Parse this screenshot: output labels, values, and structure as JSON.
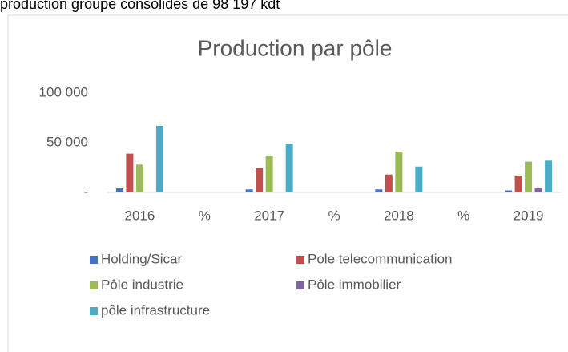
{
  "page_text": "production groupe consolidés de 98 197 kdt",
  "chart_data": {
    "type": "bar",
    "title": "Production par pôle",
    "categories": [
      "2016",
      "%",
      "2017",
      "%",
      "2018",
      "%",
      "2019"
    ],
    "series": [
      {
        "name": "Holding/Sicar",
        "color": "#4472c4",
        "values": [
          4000,
          0,
          3000,
          0,
          3000,
          0,
          2000
        ]
      },
      {
        "name": "Pole telecommunication",
        "color": "#c0504d",
        "values": [
          39000,
          0,
          25000,
          0,
          18000,
          0,
          17000
        ]
      },
      {
        "name": "Pôle industrie",
        "color": "#9bbb59",
        "values": [
          28000,
          0,
          37000,
          0,
          41000,
          0,
          31000
        ]
      },
      {
        "name": "Pôle immobilier",
        "color": "#8064a2",
        "values": [
          0,
          0,
          0,
          0,
          0,
          0,
          4000
        ]
      },
      {
        "name": "pôle infrastructure",
        "color": "#4bacc6",
        "values": [
          67000,
          0,
          49000,
          0,
          26000,
          0,
          32000
        ]
      }
    ],
    "ylim": [
      0,
      100000
    ],
    "yticks": [
      {
        "value": 0,
        "label": "-"
      },
      {
        "value": 50000,
        "label": "50 000"
      },
      {
        "value": 100000,
        "label": "100 000"
      }
    ],
    "grid": false,
    "legend": "bottom"
  }
}
